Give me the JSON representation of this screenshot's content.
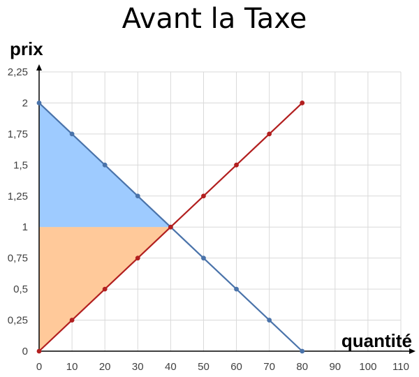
{
  "chart_data": {
    "type": "line",
    "title": "Avant la Taxe",
    "xlabel": "quantité",
    "ylabel": "prix",
    "xlim": [
      0,
      110
    ],
    "ylim": [
      0,
      2.25
    ],
    "x_ticks": [
      "0",
      "10",
      "20",
      "30",
      "40",
      "50",
      "60",
      "70",
      "80",
      "90",
      "100",
      "110"
    ],
    "y_ticks": [
      "0",
      "0,25",
      "0,5",
      "0,75",
      "1",
      "1,25",
      "1,5",
      "1,75",
      "2",
      "2,25"
    ],
    "grid": true,
    "series": [
      {
        "color": "#4a73aa",
        "x": [
          0,
          10,
          20,
          30,
          40,
          50,
          60,
          70,
          80
        ],
        "y": [
          2,
          1.75,
          1.5,
          1.25,
          1,
          0.75,
          0.5,
          0.25,
          0
        ]
      },
      {
        "color": "#b21f1f",
        "x": [
          0,
          10,
          20,
          30,
          40,
          50,
          60,
          70,
          80
        ],
        "y": [
          0,
          0.25,
          0.5,
          0.75,
          1,
          1.25,
          1.5,
          1.75,
          2
        ]
      }
    ],
    "shaded_regions": [
      {
        "color": "#9ecbff",
        "vertices": [
          [
            0,
            2
          ],
          [
            40,
            1
          ],
          [
            0,
            1
          ]
        ]
      },
      {
        "color": "#ffc99a",
        "vertices": [
          [
            0,
            1
          ],
          [
            40,
            1
          ],
          [
            0,
            0
          ]
        ]
      }
    ]
  }
}
